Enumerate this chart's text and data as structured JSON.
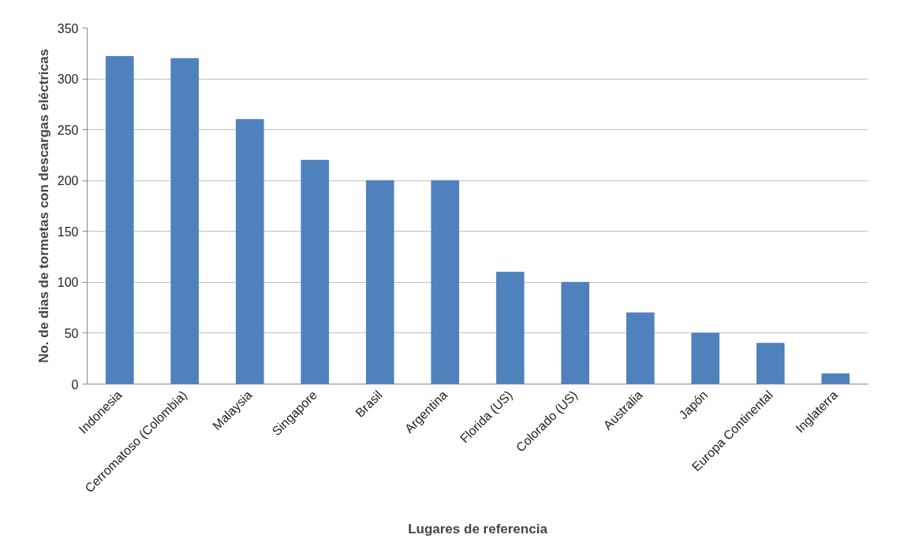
{
  "chart_data": {
    "type": "bar",
    "xlabel": "Lugares de referencia",
    "ylabel": "No. de dias de tormetas con descargas eléctricas",
    "categories": [
      "Indonesia",
      "Cerromatoso (Colombia)",
      "Malaysia",
      "Singapore",
      "Brasil",
      "Argentina",
      "Florida (US)",
      "Colorado (US)",
      "Australia",
      "Japón",
      "Europa Continental",
      "Inglaterra"
    ],
    "values": [
      322,
      320,
      260,
      220,
      200,
      200,
      110,
      100,
      70,
      50,
      40,
      10
    ],
    "color": "#4f81bd",
    "ylim": [
      0,
      350
    ],
    "yticks": [
      0,
      50,
      100,
      150,
      200,
      250,
      300,
      350
    ],
    "grid": "y"
  }
}
